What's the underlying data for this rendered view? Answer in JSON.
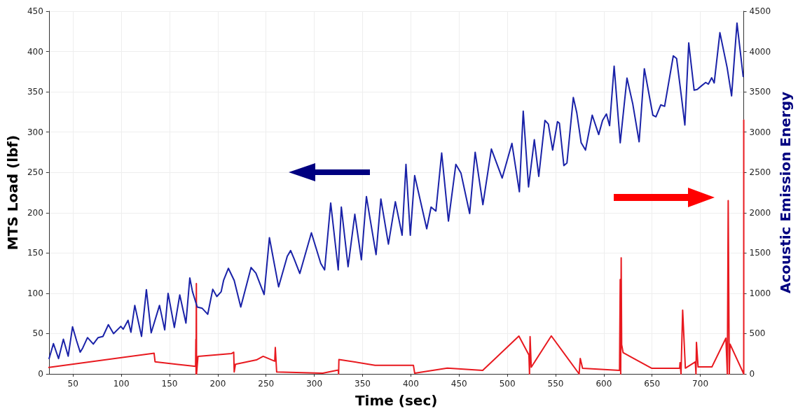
{
  "chart_data": {
    "type": "line",
    "xlabel": "Time (sec)",
    "ylabel": "MTS Load (lbf)",
    "y2label": "Acoustic Emission Energy",
    "xlim": [
      25,
      745
    ],
    "xticks": [
      50,
      100,
      150,
      200,
      250,
      300,
      350,
      400,
      450,
      500,
      550,
      600,
      650,
      700
    ],
    "ylim": [
      0,
      450
    ],
    "yticks": [
      0,
      50,
      100,
      150,
      200,
      250,
      300,
      350,
      400,
      450
    ],
    "y2lim": [
      0,
      4500
    ],
    "y2ticks": [
      0,
      500,
      1000,
      1500,
      2000,
      2500,
      3000,
      3500,
      4000,
      4500
    ],
    "grid": true,
    "marker": "none",
    "line_style": "solid",
    "series": [
      {
        "color": "#e8191f",
        "axis": "y2",
        "x": [
          25,
          134,
          135,
          177,
          177.3,
          177.5,
          177.8,
          178,
          179.5,
          214,
          216.5,
          217,
          218.3,
          240,
          247,
          259,
          259.6,
          261,
          261.5,
          308.7,
          324.8,
          325.2,
          325.5,
          363,
          402.7,
          404,
          437.8,
          474.5,
          512,
          522.4,
          523,
          523.6,
          524.8,
          545.6,
          574.4,
          575.6,
          578,
          616.3,
          617,
          617.5,
          618,
          618.5,
          620,
          649.8,
          678.6,
          679,
          680,
          681.7,
          684.5,
          694.8,
          695.5,
          696,
          697.7,
          712,
          726.5,
          728,
          728.9,
          730,
          730.8,
          745,
          745
        ],
        "values": [
          80,
          257,
          150,
          93,
          427,
          0,
          1120,
          0,
          218,
          251,
          269,
          24,
          119,
          173,
          218,
          158,
          328,
          24,
          24,
          9,
          48,
          0,
          179,
          107,
          107,
          9,
          71,
          43,
          469,
          234,
          0,
          463,
          83,
          471,
          0,
          191,
          69,
          43,
          1170,
          0,
          1440,
          363,
          263,
          69,
          69,
          140,
          0,
          791,
          71,
          149,
          0,
          391,
          86,
          86,
          443,
          0,
          2150,
          0,
          369,
          0,
          3150
        ]
      },
      {
        "color": "#1a22a8",
        "x": [
          25.2,
          29.7,
          35,
          40,
          45,
          49.5,
          53.7,
          57.4,
          60,
          65,
          71,
          76,
          81,
          86.6,
          92,
          99.5,
          102,
          107,
          110,
          114,
          121,
          126,
          131,
          139.6,
          145,
          148.5,
          155,
          160.6,
          167,
          171,
          173.8,
          178.7,
          183.7,
          189.6,
          194.8,
          199,
          203.5,
          206,
          211,
          217,
          223.8,
          234.5,
          239.5,
          248,
          253.5,
          263,
          272,
          275.5,
          279,
          285,
          297,
          306.7,
          310.7,
          317,
          324.8,
          328,
          335,
          342,
          348.8,
          354,
          358,
          364,
          369,
          376.8,
          384,
          391,
          395,
          399.5,
          404,
          408,
          416.5,
          421,
          426,
          432,
          439,
          446.7,
          452,
          461,
          466.7,
          474.7,
          483.5,
          494.7,
          504.8,
          512.5,
          516.5,
          522,
          528,
          532.6,
          539,
          542.5,
          547,
          552,
          554,
          558.6,
          561.8,
          568.4,
          572,
          576.5,
          581,
          588,
          594.7,
          598.7,
          602.7,
          606,
          610.7,
          617,
          624,
          630,
          636.6,
          642,
          650.8,
          654,
          659,
          663,
          672,
          675.4,
          680,
          684,
          688,
          693.6,
          696.8,
          701.6,
          705.6,
          708.3,
          711.8,
          714.4,
          720.3,
          727.8,
          732.4,
          738,
          744.4
        ],
        "values": [
          19,
          37.6,
          19,
          43,
          22,
          58.5,
          41,
          27,
          32,
          45,
          37,
          45,
          46.5,
          61,
          50,
          59,
          55.5,
          66.5,
          51.6,
          85,
          46.5,
          104.5,
          51,
          85,
          54.6,
          100,
          57.6,
          98,
          63,
          119,
          102,
          83,
          81.5,
          74,
          105,
          96,
          102,
          116,
          131,
          116,
          83,
          132,
          125,
          98.5,
          169,
          108,
          146,
          153,
          143,
          124.6,
          175,
          137,
          129,
          212,
          129,
          207,
          133,
          198,
          141.6,
          220,
          191,
          148,
          217,
          161,
          213.6,
          172,
          260,
          172,
          246,
          225,
          180,
          207,
          202,
          274,
          189.6,
          260,
          249,
          199,
          275,
          210,
          279,
          243,
          286,
          226,
          326,
          232,
          290.5,
          245,
          314.5,
          310,
          277.7,
          313,
          311,
          258.5,
          261.7,
          343,
          324,
          287,
          277.7,
          321,
          297,
          314.5,
          322.5,
          308,
          381.8,
          286.7,
          367,
          335,
          288,
          378.6,
          321,
          319,
          333.8,
          332,
          394.6,
          391.4,
          348,
          308.8,
          410.6,
          352,
          353,
          357.8,
          361.6,
          359.4,
          367.4,
          361,
          423.4,
          380,
          345,
          435.3,
          369
        ]
      }
    ]
  }
}
